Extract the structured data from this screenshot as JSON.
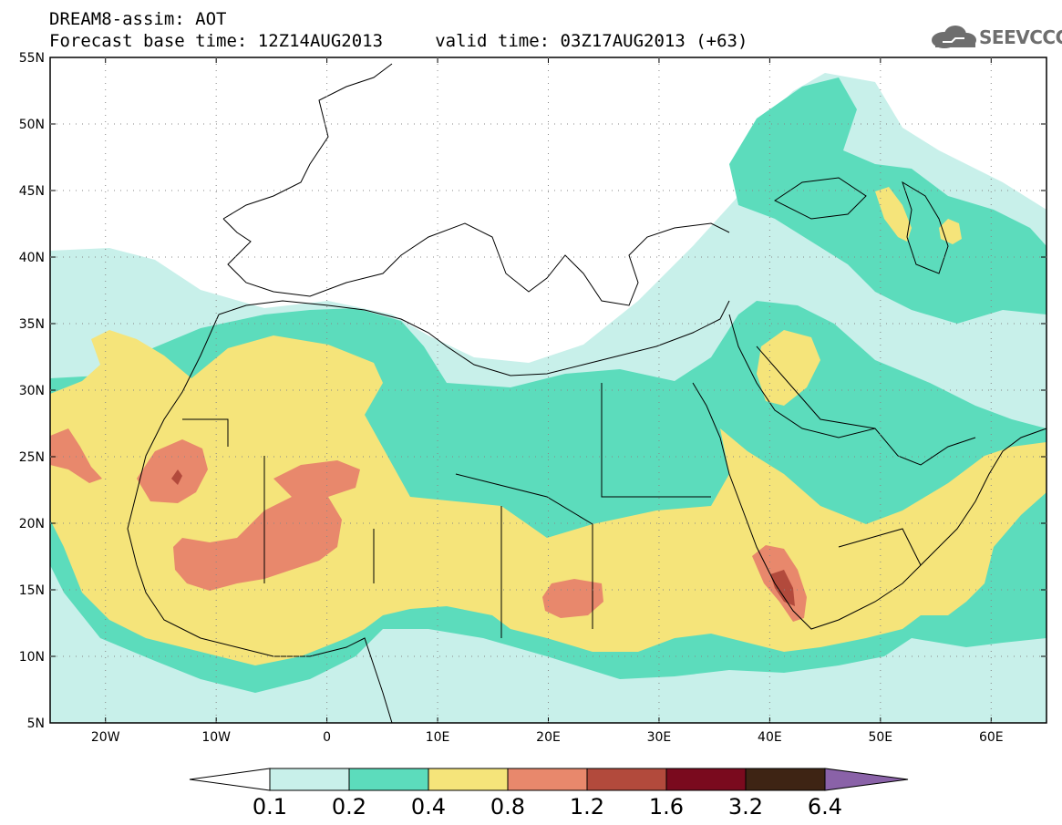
{
  "header": {
    "title_line1": "DREAM8-assim: AOT",
    "title_line2": "Forecast base time: 12Z14AUG2013     valid time: 03Z17AUG2013 (+63)",
    "logo_text": "SEEVCCC"
  },
  "map": {
    "lat_labels": [
      "55N",
      "50N",
      "45N",
      "40N",
      "35N",
      "30N",
      "25N",
      "20N",
      "15N",
      "10N",
      "5N"
    ],
    "lon_labels": [
      "20W",
      "10W",
      "0",
      "10E",
      "20E",
      "30E",
      "40E",
      "50E",
      "60E"
    ],
    "lat_range": [
      5,
      55
    ],
    "lon_range": [
      -25,
      65
    ],
    "colors": {
      "ocean": "#ffffff",
      "coast": "#000000"
    }
  },
  "colorbar": {
    "labels": [
      "0.1",
      "0.2",
      "0.4",
      "0.8",
      "1.2",
      "1.6",
      "3.2",
      "6.4"
    ],
    "colors": [
      "#c8f0ea",
      "#5cdcbc",
      "#f5e47a",
      "#e8886c",
      "#b24a3c",
      "#7a0a1e",
      "#3e2414",
      "#8a62a8"
    ]
  }
}
